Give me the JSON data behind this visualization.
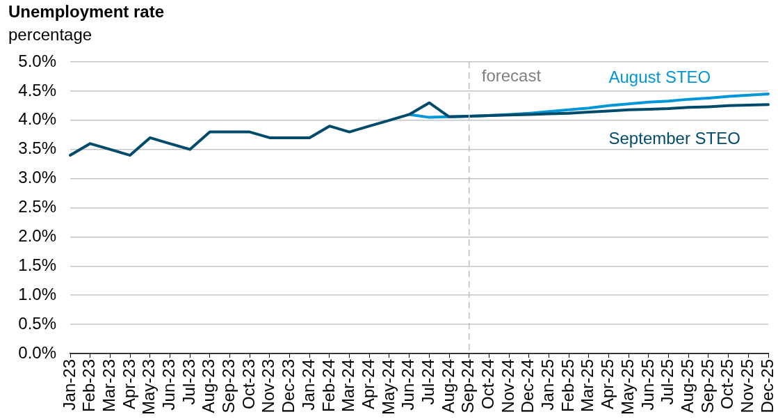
{
  "chart_data": {
    "type": "line",
    "title": "Unemployment rate",
    "ylabel": "percentage",
    "categories": [
      "Jan-23",
      "Feb-23",
      "Mar-23",
      "Apr-23",
      "May-23",
      "Jun-23",
      "Jul-23",
      "Aug-23",
      "Sep-23",
      "Oct-23",
      "Nov-23",
      "Dec-23",
      "Jan-24",
      "Feb-24",
      "Mar-24",
      "Apr-24",
      "May-24",
      "Jun-24",
      "Jul-24",
      "Aug-24",
      "Sep-24",
      "Oct-24",
      "Nov-24",
      "Dec-24",
      "Jan-25",
      "Feb-25",
      "Mar-25",
      "Apr-25",
      "May-25",
      "Jun-25",
      "Jul-25",
      "Aug-25",
      "Sep-25",
      "Oct-25",
      "Nov-25",
      "Dec-25"
    ],
    "series": [
      {
        "name": "August STEO",
        "color": "#0096d7",
        "values": [
          null,
          null,
          null,
          null,
          null,
          null,
          null,
          null,
          null,
          null,
          null,
          null,
          null,
          null,
          null,
          null,
          null,
          4.1,
          4.05,
          4.06,
          4.07,
          4.08,
          4.1,
          4.12,
          4.15,
          4.18,
          4.21,
          4.25,
          4.28,
          4.31,
          4.33,
          4.36,
          4.38,
          4.41,
          4.43,
          4.45
        ]
      },
      {
        "name": "September STEO",
        "color": "#004b6b",
        "values": [
          3.4,
          3.6,
          3.5,
          3.4,
          3.7,
          3.6,
          3.5,
          3.8,
          3.8,
          3.8,
          3.7,
          3.7,
          3.7,
          3.9,
          3.8,
          3.9,
          4.0,
          4.1,
          4.3,
          4.06,
          4.07,
          4.08,
          4.09,
          4.1,
          4.11,
          4.12,
          4.14,
          4.16,
          4.18,
          4.19,
          4.2,
          4.22,
          4.23,
          4.25,
          4.26,
          4.27
        ]
      }
    ],
    "ylim": [
      0,
      5
    ],
    "yticks": [
      {
        "value": 0,
        "label": "0.0%"
      },
      {
        "value": 0.5,
        "label": "0.5%"
      },
      {
        "value": 1,
        "label": "1.0%"
      },
      {
        "value": 1.5,
        "label": "1.5%"
      },
      {
        "value": 2,
        "label": "2.0%"
      },
      {
        "value": 2.5,
        "label": "2.5%"
      },
      {
        "value": 3,
        "label": "3.0%"
      },
      {
        "value": 3.5,
        "label": "3.5%"
      },
      {
        "value": 4,
        "label": "4.0%"
      },
      {
        "value": 4.5,
        "label": "4.5%"
      },
      {
        "value": 5,
        "label": "5.0%"
      }
    ],
    "ref_lines": [
      {
        "axis": "x",
        "value": "Sep-24",
        "label": "forecast",
        "color": "#bfbfbf",
        "line_style": "dashed"
      }
    ],
    "grid": "y",
    "marker": "none",
    "line_style": "solid"
  }
}
